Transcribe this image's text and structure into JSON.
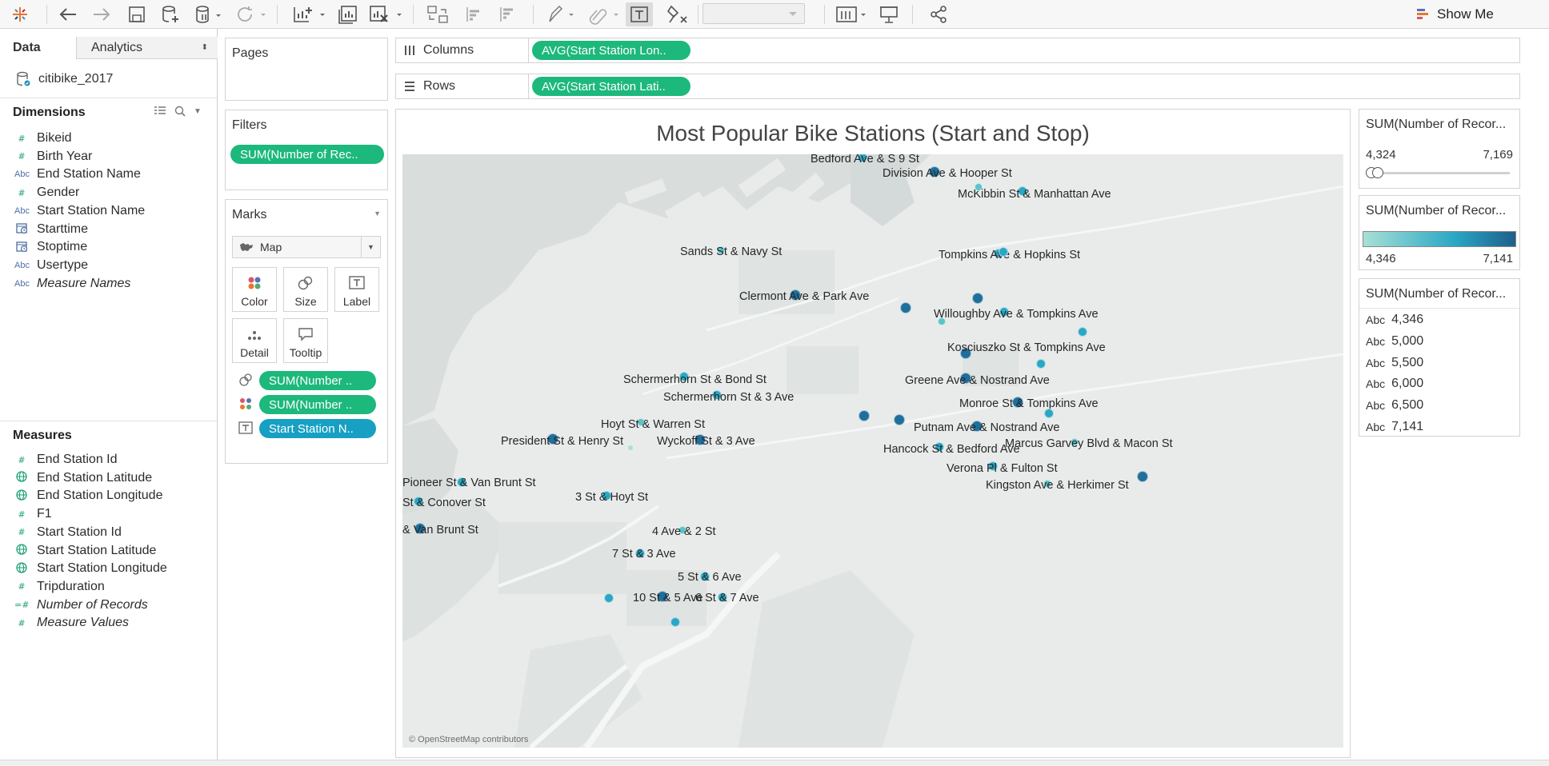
{
  "toolbar": {
    "show_me_label": "Show Me",
    "icons": [
      "tableau-logo-icon",
      "undo-icon",
      "redo-icon",
      "save-icon",
      "new-datasource-icon",
      "pause-updates-icon",
      "refresh-icon",
      "new-worksheet-icon",
      "duplicate-icon",
      "clear-icon",
      "swap-icon",
      "sort-ascending-icon",
      "sort-descending-icon",
      "highlight-icon",
      "group-icon",
      "show-labels-icon",
      "fix-axes-icon",
      "fit-icon",
      "show-cards-icon",
      "presentation-icon",
      "share-icon"
    ]
  },
  "data_pane": {
    "tabs": [
      "Data",
      "Analytics"
    ],
    "datasource": "citibike_2017",
    "dimensions_title": "Dimensions",
    "dimensions": [
      {
        "icon": "#",
        "name": "Bikeid"
      },
      {
        "icon": "#",
        "name": "Birth Year"
      },
      {
        "icon": "Abc",
        "name": "End Station Name"
      },
      {
        "icon": "#",
        "name": "Gender"
      },
      {
        "icon": "Abc",
        "name": "Start Station Name"
      },
      {
        "icon": "date",
        "name": "Starttime"
      },
      {
        "icon": "date",
        "name": "Stoptime"
      },
      {
        "icon": "Abc",
        "name": "Usertype"
      },
      {
        "icon": "Abc",
        "name": "Measure Names"
      }
    ],
    "measures_title": "Measures",
    "measures": [
      {
        "icon": "#",
        "name": "End Station Id"
      },
      {
        "icon": "globe",
        "name": "End Station Latitude"
      },
      {
        "icon": "globe",
        "name": "End Station Longitude"
      },
      {
        "icon": "#",
        "name": "F1"
      },
      {
        "icon": "#",
        "name": "Start Station Id"
      },
      {
        "icon": "globe",
        "name": "Start Station Latitude"
      },
      {
        "icon": "globe",
        "name": "Start Station Longitude"
      },
      {
        "icon": "#",
        "name": "Tripduration"
      },
      {
        "icon": "=#",
        "name": "Number of Records"
      },
      {
        "icon": "#",
        "name": "Measure Values"
      }
    ]
  },
  "cards": {
    "pages_title": "Pages",
    "filters_title": "Filters",
    "filter_pill": "SUM(Number of Rec..",
    "marks_title": "Marks",
    "mark_type": "Map",
    "mark_buttons": [
      "Color",
      "Size",
      "Label",
      "Detail",
      "Tooltip"
    ],
    "mark_pills": [
      "SUM(Number ..",
      "SUM(Number ..",
      "Start Station N.."
    ]
  },
  "shelves": {
    "columns_label": "Columns",
    "columns_pill": "AVG(Start Station Lon..",
    "rows_label": "Rows",
    "rows_pill": "AVG(Start Station Lati.."
  },
  "view": {
    "title": "Most Popular Bike Stations (Start and Stop)",
    "attribution": "© OpenStreetMap contributors",
    "stations": [
      "Bedford Ave & S 9 St",
      "Division Ave & Hooper St",
      "McKibbin St & Manhattan Ave",
      "Sands St & Navy St",
      "Tompkins Ave & Hopkins St",
      "Clermont Ave & Park Ave",
      "Willoughby Ave & Tompkins Ave",
      "Kosciuszko St & Tompkins Ave",
      "Schermerhorn St & Bond St",
      "Greene Ave & Nostrand Ave",
      "Schermerhorn St & 3 Ave",
      "Monroe St & Tompkins Ave",
      "Hoyt St & Warren St",
      "Putnam Ave & Nostrand Ave",
      "President St & Henry St",
      "Wyckoff St & 3 Ave",
      "Hancock St & Bedford Ave",
      "Marcus Garvey Blvd & Macon St",
      "Verona Pl & Fulton St",
      "Pioneer St & Van Brunt St",
      "Kingston Ave & Herkimer St",
      "3 St & Hoyt St",
      "St & Conover St",
      "& Van Brunt St",
      "4 Ave & 2 St",
      "7 St & 3 Ave",
      "5 St & 6 Ave",
      "10 St & 5 Ave",
      "6 St & 7 Ave"
    ]
  },
  "legends": {
    "size": {
      "title": "SUM(Number of Recor...",
      "min": "4,324",
      "max": "7,169"
    },
    "color": {
      "title": "SUM(Number of Recor...",
      "min": "4,346",
      "max": "7,141",
      "color_low": "#a8e0d6",
      "color_high": "#1f5f8b"
    },
    "label": {
      "title": "SUM(Number of Recor...",
      "prefix": "Abc",
      "items": [
        "4,346",
        "5,000",
        "5,500",
        "6,000",
        "6,500",
        "7,141"
      ]
    }
  }
}
